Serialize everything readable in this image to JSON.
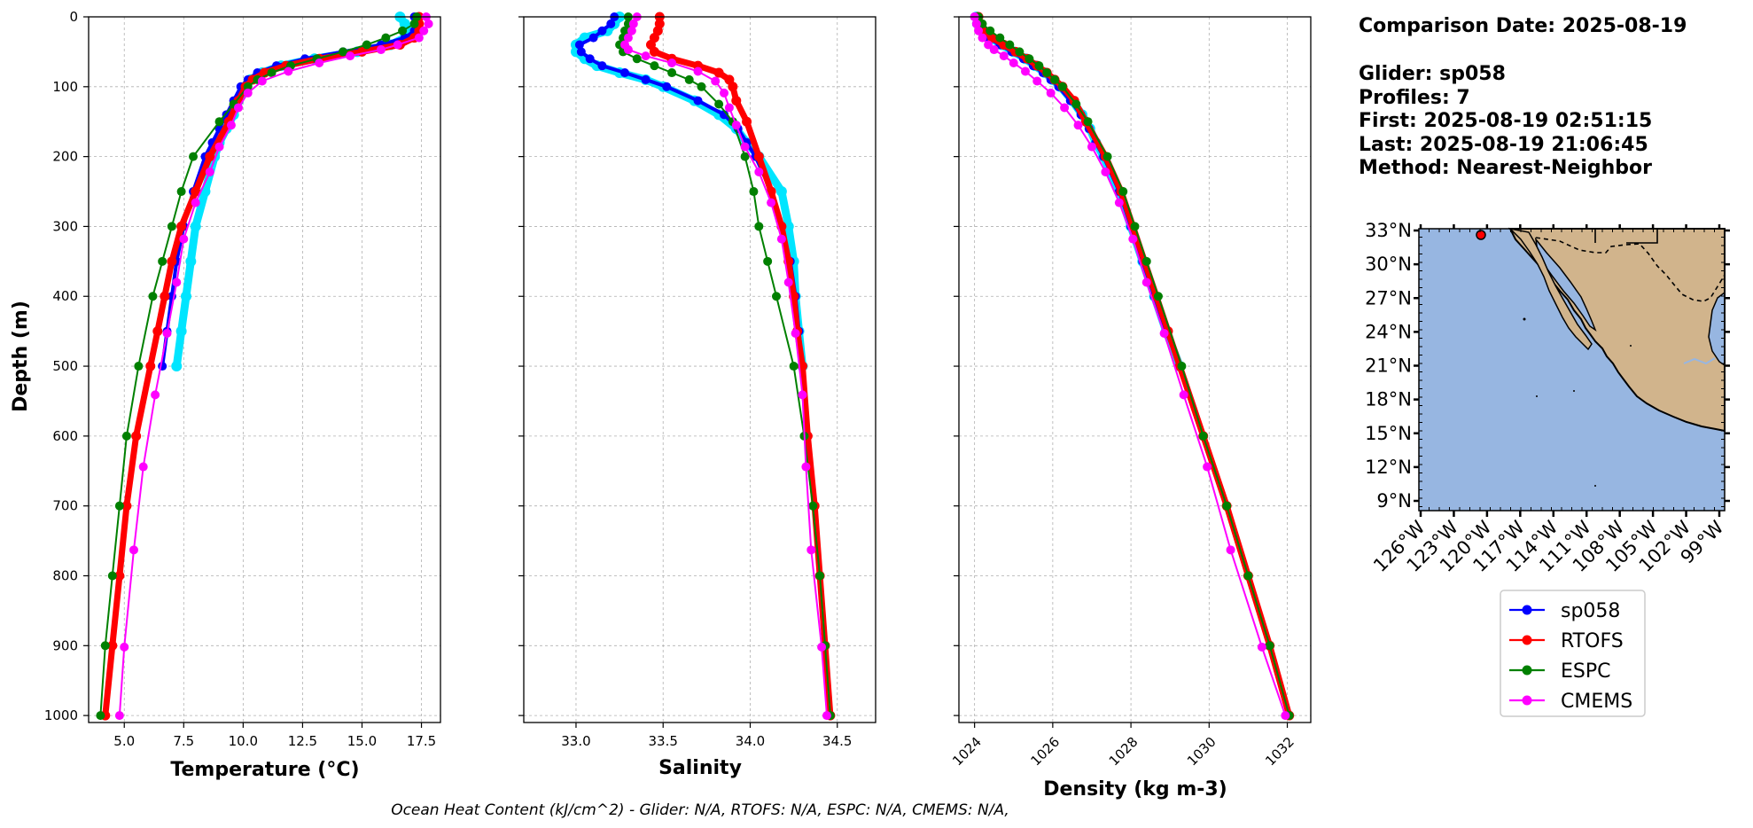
{
  "chart_data": [
    {
      "type": "line",
      "xlabel": "Temperature (°C)",
      "ylabel": "Depth (m)",
      "xlim": [
        3.5,
        18.3
      ],
      "ylim": [
        1010,
        0
      ],
      "xticks": [
        5.0,
        7.5,
        10.0,
        12.5,
        15.0,
        17.5
      ],
      "xtick_labels": [
        "5.0",
        "7.5",
        "10.0",
        "12.5",
        "15.0",
        "17.5"
      ],
      "yticks": [
        0,
        100,
        200,
        300,
        400,
        500,
        600,
        700,
        800,
        900,
        1000
      ],
      "grid": true,
      "series": [
        {
          "name": "cyan",
          "color": "#00e5ff",
          "markers": true,
          "depth": [
            0,
            10,
            20,
            30,
            40,
            50,
            60,
            70,
            80,
            90,
            100,
            120,
            140,
            160,
            180,
            200,
            250,
            300,
            350,
            400,
            450,
            500
          ],
          "values": [
            16.6,
            16.8,
            16.9,
            16.8,
            16.2,
            14.8,
            13.0,
            11.6,
            10.8,
            10.3,
            10.1,
            9.8,
            9.6,
            9.3,
            9.0,
            8.8,
            8.4,
            8.0,
            7.8,
            7.6,
            7.4,
            7.2
          ]
        },
        {
          "name": "sp058",
          "color": "#0000ff",
          "markers": true,
          "depth": [
            0,
            10,
            20,
            30,
            40,
            50,
            60,
            70,
            80,
            90,
            100,
            120,
            140,
            160,
            180,
            200,
            250,
            300,
            350,
            400,
            450,
            500
          ],
          "values": [
            17.2,
            17.3,
            17.2,
            16.8,
            15.8,
            14.2,
            12.6,
            11.4,
            10.6,
            10.2,
            9.9,
            9.6,
            9.3,
            9.0,
            8.7,
            8.4,
            7.9,
            7.5,
            7.2,
            7.0,
            6.8,
            6.6
          ]
        },
        {
          "name": "RTOFS",
          "color": "#ff0000",
          "markers": true,
          "depth": [
            0,
            10,
            20,
            30,
            40,
            50,
            60,
            70,
            80,
            90,
            100,
            120,
            150,
            200,
            250,
            300,
            350,
            400,
            450,
            500,
            600,
            700,
            800,
            900,
            1000
          ],
          "values": [
            17.4,
            17.4,
            17.4,
            17.2,
            16.6,
            15.0,
            13.2,
            11.8,
            10.9,
            10.4,
            10.1,
            9.8,
            9.4,
            8.6,
            8.0,
            7.4,
            7.0,
            6.7,
            6.4,
            6.1,
            5.5,
            5.1,
            4.8,
            4.5,
            4.2
          ]
        },
        {
          "name": "ESPC",
          "color": "#008000",
          "markers": true,
          "depth": [
            0,
            10,
            20,
            30,
            40,
            50,
            60,
            70,
            80,
            90,
            100,
            125,
            150,
            200,
            250,
            300,
            350,
            400,
            500,
            600,
            700,
            800,
            900,
            1000
          ],
          "values": [
            17.3,
            17.2,
            16.7,
            16.0,
            15.2,
            14.2,
            13.1,
            12.0,
            11.2,
            10.6,
            10.2,
            9.6,
            9.0,
            7.9,
            7.4,
            7.0,
            6.6,
            6.2,
            5.6,
            5.1,
            4.8,
            4.5,
            4.2,
            4.0
          ]
        },
        {
          "name": "CMEMS",
          "color": "#ff00ff",
          "markers": true,
          "depth": [
            0,
            10,
            20,
            30,
            40,
            47,
            56,
            66,
            78,
            92,
            109,
            130,
            155,
            186,
            222,
            266,
            318,
            380,
            453,
            541,
            644,
            763,
            902,
            1000
          ],
          "values": [
            17.7,
            17.8,
            17.6,
            17.4,
            16.5,
            15.8,
            14.5,
            13.2,
            11.9,
            10.8,
            10.2,
            9.8,
            9.5,
            9.0,
            8.6,
            8.0,
            7.5,
            7.2,
            6.8,
            6.3,
            5.8,
            5.4,
            5.0,
            4.8
          ]
        }
      ]
    },
    {
      "type": "line",
      "xlabel": "Salinity",
      "xlim": [
        32.7,
        34.72
      ],
      "ylim": [
        1010,
        0
      ],
      "xticks": [
        33.0,
        33.5,
        34.0,
        34.5
      ],
      "xtick_labels": [
        "33.0",
        "33.5",
        "34.0",
        "34.5"
      ],
      "yticks": [
        0,
        100,
        200,
        300,
        400,
        500,
        600,
        700,
        800,
        900,
        1000
      ],
      "grid": true,
      "series": [
        {
          "name": "cyan",
          "color": "#00e5ff",
          "markers": true,
          "depth": [
            0,
            10,
            20,
            30,
            40,
            50,
            60,
            70,
            80,
            90,
            100,
            120,
            140,
            160,
            180,
            200,
            250,
            300,
            350,
            400,
            450,
            500
          ],
          "values": [
            33.25,
            33.22,
            33.18,
            33.05,
            33.0,
            33.0,
            33.05,
            33.12,
            33.25,
            33.4,
            33.5,
            33.68,
            33.82,
            33.92,
            33.98,
            34.05,
            34.18,
            34.22,
            34.25,
            34.26,
            34.28,
            34.3
          ]
        },
        {
          "name": "sp058",
          "color": "#0000ff",
          "markers": true,
          "depth": [
            0,
            10,
            20,
            30,
            40,
            50,
            60,
            70,
            80,
            90,
            100,
            120,
            140,
            160,
            180,
            200,
            250,
            300,
            350,
            400,
            450,
            500
          ],
          "values": [
            33.22,
            33.2,
            33.15,
            33.1,
            33.02,
            33.03,
            33.08,
            33.15,
            33.28,
            33.4,
            33.52,
            33.7,
            33.85,
            33.93,
            33.98,
            34.03,
            34.12,
            34.18,
            34.23,
            34.26,
            34.28,
            34.3
          ]
        },
        {
          "name": "RTOFS",
          "color": "#ff0000",
          "markers": true,
          "depth": [
            0,
            10,
            20,
            30,
            40,
            50,
            60,
            70,
            80,
            90,
            100,
            120,
            150,
            200,
            250,
            300,
            350,
            400,
            450,
            500,
            600,
            700,
            800,
            900,
            1000
          ],
          "values": [
            33.48,
            33.48,
            33.47,
            33.45,
            33.43,
            33.45,
            33.55,
            33.7,
            33.82,
            33.88,
            33.9,
            33.92,
            33.98,
            34.05,
            34.12,
            34.18,
            34.22,
            34.25,
            34.27,
            34.3,
            34.33,
            34.37,
            34.4,
            34.43,
            34.46
          ]
        },
        {
          "name": "ESPC",
          "color": "#008000",
          "markers": true,
          "depth": [
            0,
            10,
            20,
            30,
            40,
            50,
            60,
            70,
            80,
            90,
            100,
            125,
            150,
            200,
            250,
            300,
            350,
            400,
            500,
            600,
            700,
            800,
            900,
            1000
          ],
          "values": [
            33.3,
            33.3,
            33.28,
            33.27,
            33.25,
            33.27,
            33.35,
            33.45,
            33.55,
            33.65,
            33.72,
            33.82,
            33.9,
            33.97,
            34.02,
            34.05,
            34.1,
            34.15,
            34.25,
            34.31,
            34.36,
            34.4,
            34.43,
            34.46
          ]
        },
        {
          "name": "CMEMS",
          "color": "#ff00ff",
          "markers": true,
          "depth": [
            0,
            10,
            20,
            30,
            40,
            47,
            56,
            66,
            78,
            92,
            109,
            130,
            155,
            186,
            222,
            266,
            318,
            380,
            453,
            541,
            644,
            763,
            902,
            1000
          ],
          "values": [
            33.35,
            33.33,
            33.32,
            33.3,
            33.28,
            33.3,
            33.4,
            33.55,
            33.7,
            33.8,
            33.85,
            33.88,
            33.92,
            33.97,
            34.05,
            34.12,
            34.18,
            34.22,
            34.26,
            34.3,
            34.32,
            34.35,
            34.41,
            34.44
          ]
        }
      ]
    },
    {
      "type": "line",
      "xlabel": "Density (kg m-3)",
      "xlim": [
        1023.6,
        1032.6
      ],
      "ylim": [
        1010,
        0
      ],
      "xticks": [
        1024,
        1026,
        1028,
        1030,
        1032
      ],
      "xtick_labels": [
        "1024",
        "1026",
        "1028",
        "1030",
        "1032"
      ],
      "yticks": [
        0,
        100,
        200,
        300,
        400,
        500,
        600,
        700,
        800,
        900,
        1000
      ],
      "grid": true,
      "series": [
        {
          "name": "cyan",
          "color": "#00e5ff",
          "markers": true,
          "depth": [
            0,
            10,
            20,
            30,
            40,
            50,
            60,
            70,
            80,
            90,
            100,
            120,
            140,
            160,
            180,
            200,
            250,
            300,
            350,
            400,
            450,
            500
          ],
          "values": [
            1024.05,
            1024.1,
            1024.2,
            1024.4,
            1024.7,
            1025.0,
            1025.3,
            1025.55,
            1025.8,
            1026.0,
            1026.2,
            1026.5,
            1026.75,
            1026.95,
            1027.1,
            1027.3,
            1027.7,
            1028.0,
            1028.3,
            1028.6,
            1028.9,
            1029.25
          ]
        },
        {
          "name": "sp058",
          "color": "#0000ff",
          "markers": true,
          "depth": [
            0,
            10,
            20,
            30,
            40,
            50,
            60,
            70,
            80,
            90,
            100,
            120,
            140,
            160,
            180,
            200,
            250,
            300,
            350,
            400,
            450,
            500
          ],
          "values": [
            1024.0,
            1024.05,
            1024.15,
            1024.35,
            1024.65,
            1024.95,
            1025.25,
            1025.5,
            1025.75,
            1025.95,
            1026.15,
            1026.45,
            1026.72,
            1026.93,
            1027.1,
            1027.3,
            1027.7,
            1028.0,
            1028.3,
            1028.6,
            1028.9,
            1029.25
          ]
        },
        {
          "name": "RTOFS",
          "color": "#ff0000",
          "markers": true,
          "depth": [
            0,
            10,
            20,
            30,
            40,
            50,
            60,
            70,
            80,
            90,
            100,
            120,
            150,
            200,
            250,
            300,
            350,
            400,
            450,
            500,
            600,
            700,
            800,
            900,
            1000
          ],
          "values": [
            1024.1,
            1024.15,
            1024.25,
            1024.45,
            1024.75,
            1025.05,
            1025.35,
            1025.6,
            1025.85,
            1026.05,
            1026.25,
            1026.55,
            1026.85,
            1027.35,
            1027.75,
            1028.05,
            1028.35,
            1028.65,
            1028.95,
            1029.25,
            1029.85,
            1030.45,
            1031.0,
            1031.55,
            1032.05
          ]
        },
        {
          "name": "ESPC",
          "color": "#008000",
          "markers": true,
          "depth": [
            0,
            10,
            20,
            30,
            40,
            50,
            60,
            70,
            80,
            90,
            100,
            125,
            150,
            200,
            250,
            300,
            350,
            400,
            500,
            600,
            700,
            800,
            900,
            1000
          ],
          "values": [
            1024.1,
            1024.2,
            1024.4,
            1024.65,
            1024.9,
            1025.15,
            1025.4,
            1025.65,
            1025.85,
            1026.05,
            1026.25,
            1026.6,
            1026.9,
            1027.4,
            1027.8,
            1028.1,
            1028.4,
            1028.7,
            1029.3,
            1029.85,
            1030.45,
            1031.0,
            1031.55,
            1032.05
          ]
        },
        {
          "name": "CMEMS",
          "color": "#ff00ff",
          "markers": true,
          "depth": [
            0,
            10,
            20,
            30,
            40,
            47,
            56,
            66,
            78,
            92,
            109,
            130,
            155,
            186,
            222,
            266,
            318,
            380,
            453,
            541,
            644,
            763,
            902,
            1000
          ],
          "values": [
            1024.0,
            1024.05,
            1024.1,
            1024.2,
            1024.35,
            1024.5,
            1024.75,
            1025.0,
            1025.3,
            1025.6,
            1025.95,
            1026.3,
            1026.65,
            1027.0,
            1027.35,
            1027.7,
            1028.05,
            1028.4,
            1028.85,
            1029.35,
            1029.95,
            1030.55,
            1031.35,
            1031.95
          ]
        }
      ]
    }
  ],
  "info": {
    "comparison": "Comparison Date: 2025-08-19",
    "glider": "Glider: sp058",
    "profiles": "Profiles: 7",
    "first": "First: 2025-08-19 02:51:15",
    "last": "Last: 2025-08-19 21:06:45",
    "method": "Method: Nearest-Neighbor"
  },
  "map": {
    "lat_labels": [
      "33°N",
      "30°N",
      "27°N",
      "24°N",
      "21°N",
      "18°N",
      "15°N",
      "12°N",
      "9°N"
    ],
    "lon_labels": [
      "126°W",
      "123°W",
      "120°W",
      "117°W",
      "114°W",
      "111°W",
      "108°W",
      "105°W",
      "102°W",
      "99°W"
    ],
    "ocean_color": "#97b6e1",
    "land_color": "#d1b48c",
    "glider_marker_color": "#ff0000"
  },
  "legend": [
    {
      "label": "sp058",
      "color": "#0000ff"
    },
    {
      "label": "RTOFS",
      "color": "#ff0000"
    },
    {
      "label": "ESPC",
      "color": "#008000"
    },
    {
      "label": "CMEMS",
      "color": "#ff00ff"
    }
  ],
  "footer": "Ocean Heat Content (kJ/cm^2) - Glider: N/A,  RTOFS: N/A,  ESPC: N/A,  CMEMS: N/A,"
}
